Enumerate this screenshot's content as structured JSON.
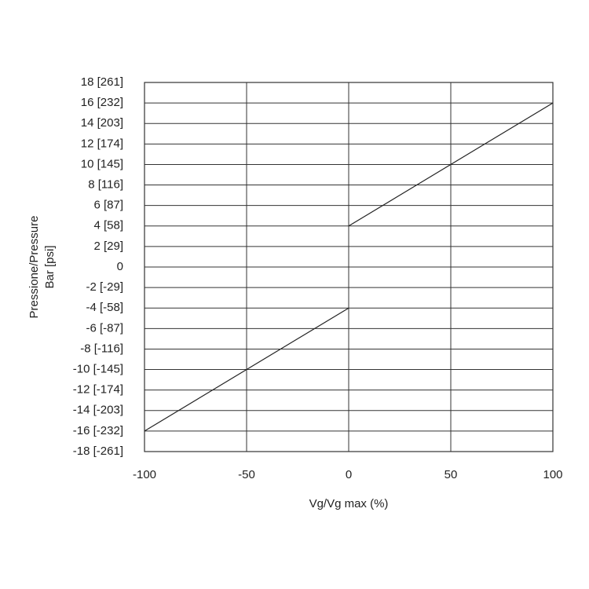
{
  "chart_data": {
    "type": "line",
    "x": [
      -100,
      0,
      0,
      0,
      100
    ],
    "values": [
      -16,
      -4,
      null,
      4,
      16
    ],
    "color": "#222222",
    "xlim": [
      -100,
      100
    ],
    "xticks": [
      -100,
      -50,
      0,
      50,
      100
    ],
    "ylim": [
      -18,
      18
    ],
    "yticks": [
      {
        "value": -18,
        "label": "-18 [-261]"
      },
      {
        "value": -16,
        "label": "-16 [-232]"
      },
      {
        "value": -14,
        "label": "-14 [-203]"
      },
      {
        "value": -12,
        "label": "-12 [-174]"
      },
      {
        "value": -10,
        "label": "-10 [-145]"
      },
      {
        "value": -8,
        "label": "-8 [-116]"
      },
      {
        "value": -6,
        "label": "-6 [-87]"
      },
      {
        "value": -4,
        "label": "-4 [-58]"
      },
      {
        "value": -2,
        "label": "-2 [-29]"
      },
      0,
      {
        "value": 2,
        "label": "2 [29]"
      },
      {
        "value": 4,
        "label": "4 [58]"
      },
      {
        "value": 6,
        "label": "6 [87]"
      },
      {
        "value": 8,
        "label": "8 [116]"
      },
      {
        "value": 10,
        "label": "10 [145]"
      },
      {
        "value": 12,
        "label": "12 [174]"
      },
      {
        "value": 14,
        "label": "14 [203]"
      },
      {
        "value": 16,
        "label": "16 [232]"
      },
      {
        "value": 18,
        "label": "18 [261]"
      }
    ],
    "xlabel": "Vg/Vg max (%)",
    "ylabel": [
      "Pressione/Pressure",
      "Bar [psi]"
    ],
    "grid": true
  }
}
